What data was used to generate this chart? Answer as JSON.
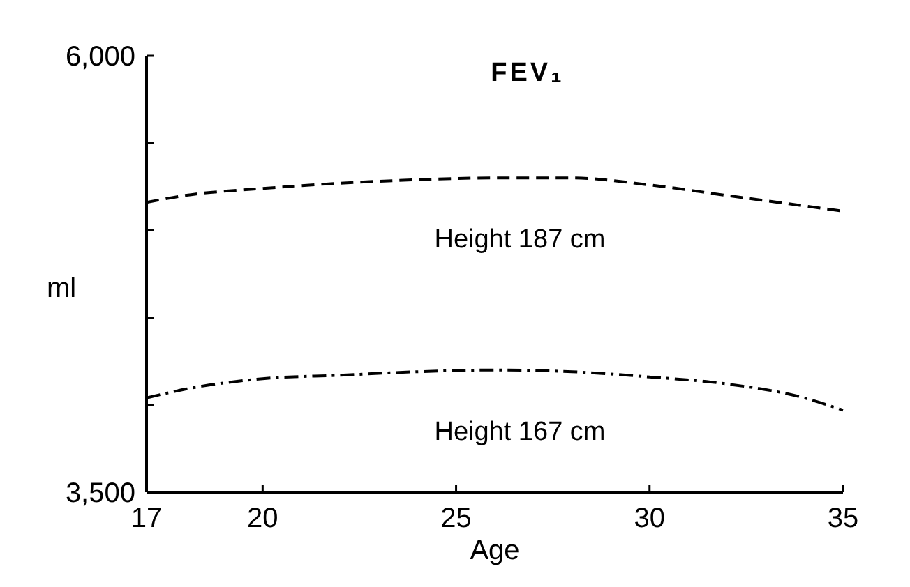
{
  "chart_data": {
    "type": "line",
    "title": "FEV₁",
    "xlabel": "Age",
    "ylabel": "ml",
    "x": [
      17,
      18,
      20,
      22,
      24,
      26,
      28,
      30,
      32,
      34,
      35
    ],
    "series": [
      {
        "name": "Height 187 cm",
        "color": "#000000",
        "line_style": "dashed",
        "values": [
          5160,
          5200,
          5240,
          5270,
          5290,
          5300,
          5300,
          5260,
          5200,
          5140,
          5110
        ]
      },
      {
        "name": "Height 167 cm",
        "color": "#000000",
        "line_style": "dashdot",
        "values": [
          4040,
          4090,
          4150,
          4170,
          4190,
          4200,
          4190,
          4160,
          4120,
          4040,
          3970
        ]
      }
    ],
    "xlim": [
      17,
      35
    ],
    "ylim": [
      3500,
      6000
    ],
    "xticks": [
      17,
      20,
      25,
      30,
      35
    ],
    "yticks": [
      {
        "value": 3500,
        "label": "3,500"
      },
      {
        "value": 4000,
        "label": null
      },
      {
        "value": 4500,
        "label": null
      },
      {
        "value": 5000,
        "label": null
      },
      {
        "value": 5500,
        "label": null
      },
      {
        "value": 6000,
        "label": "6,000"
      }
    ],
    "grid": false,
    "marker": "none"
  }
}
